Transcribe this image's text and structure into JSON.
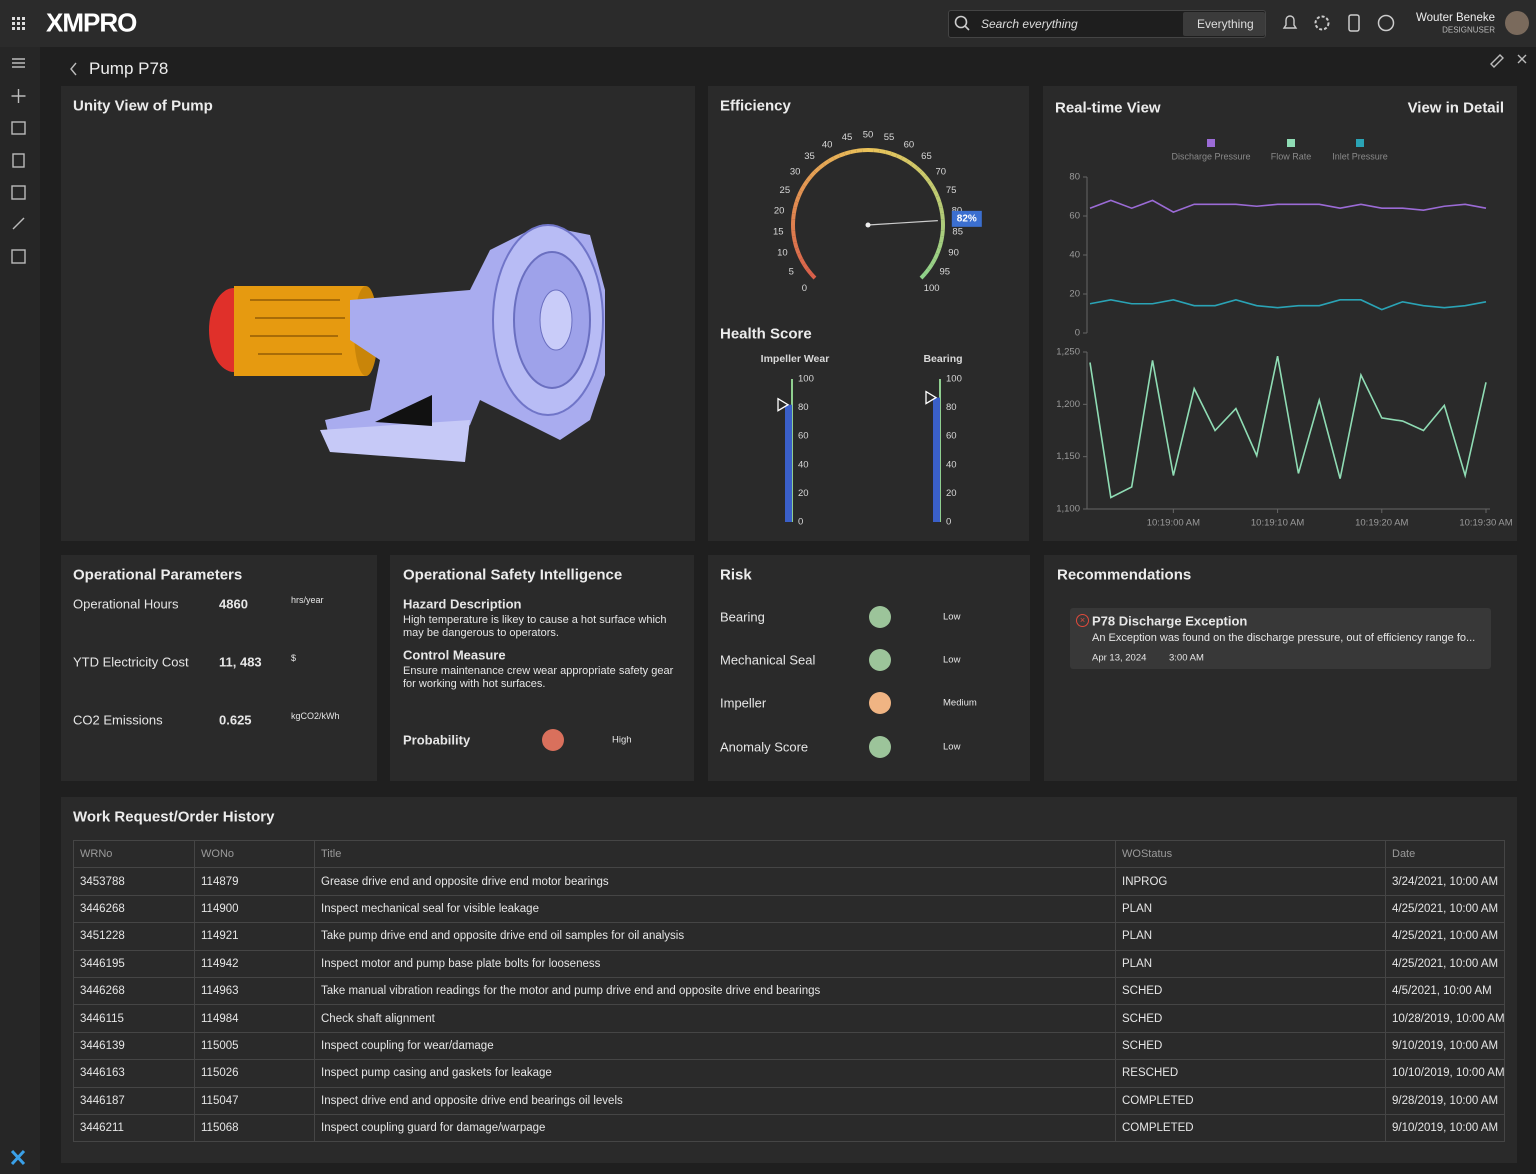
{
  "header": {
    "logo": "XMPRO",
    "search_placeholder": "Search everything",
    "search_scope": "Everything",
    "user_name": "Wouter Beneke",
    "user_role": "DESIGNUSER"
  },
  "page_title": "Pump P78",
  "unity_view": {
    "title": "Unity View of Pump"
  },
  "efficiency": {
    "title": "Efficiency",
    "chart_data": {
      "type": "gauge",
      "value": 82,
      "value_label": "82%",
      "lim": [
        0,
        100
      ],
      "ticks": [
        0,
        5,
        10,
        15,
        20,
        25,
        30,
        35,
        40,
        45,
        50,
        55,
        60,
        65,
        70,
        75,
        80,
        85,
        90,
        95,
        100
      ],
      "color": "#3b6fd0"
    }
  },
  "health_score": {
    "title": "Health Score",
    "chart_data": [
      {
        "type": "bullet",
        "title": "Impeller Wear",
        "value": 82,
        "ylim": [
          0,
          100
        ],
        "yticks": [
          0,
          20,
          40,
          60,
          80,
          100
        ],
        "color": "#3a5fc8"
      },
      {
        "type": "bullet",
        "title": "Bearing",
        "value": 87,
        "ylim": [
          0,
          100
        ],
        "yticks": [
          0,
          20,
          40,
          60,
          80,
          100
        ],
        "color": "#3a5fc8"
      }
    ]
  },
  "realtime_view": {
    "title": "Real-time View",
    "link": "View in Detail",
    "chart_data": [
      {
        "type": "line",
        "x": [
          "10:18:52 AM",
          "10:18:54 AM",
          "10:18:56 AM",
          "10:18:58 AM",
          "10:19:00 AM",
          "10:19:02 AM",
          "10:19:04 AM",
          "10:19:06 AM",
          "10:19:08 AM",
          "10:19:10 AM",
          "10:19:12 AM",
          "10:19:14 AM",
          "10:19:16 AM",
          "10:19:18 AM",
          "10:19:20 AM",
          "10:19:22 AM",
          "10:19:24 AM",
          "10:19:26 AM",
          "10:19:28 AM",
          "10:19:30 AM"
        ],
        "ylim": [
          0,
          80
        ],
        "yticks": [
          0,
          20,
          40,
          60,
          80
        ],
        "series": [
          {
            "name": "Discharge Pressure",
            "color": "#9b6bd6",
            "values": [
              64,
              68,
              64,
              68,
              62,
              66,
              66,
              66,
              65,
              66,
              66,
              66,
              64,
              66,
              64,
              64,
              63,
              65,
              66,
              64
            ]
          },
          {
            "name": "Inlet Pressure",
            "color": "#2aa3b5",
            "values": [
              15,
              17,
              15,
              15,
              17,
              14,
              14,
              17,
              14,
              13,
              14,
              14,
              17,
              17,
              12,
              16,
              14,
              13,
              14,
              16
            ]
          }
        ]
      },
      {
        "type": "line",
        "x": [
          "10:18:52 AM",
          "10:18:54 AM",
          "10:18:56 AM",
          "10:18:58 AM",
          "10:19:00 AM",
          "10:19:02 AM",
          "10:19:04 AM",
          "10:19:06 AM",
          "10:19:08 AM",
          "10:19:10 AM",
          "10:19:12 AM",
          "10:19:14 AM",
          "10:19:16 AM",
          "10:19:18 AM",
          "10:19:20 AM",
          "10:19:22 AM",
          "10:19:24 AM",
          "10:19:26 AM",
          "10:19:28 AM",
          "10:19:30 AM"
        ],
        "xticks": [
          "10:19:00 AM",
          "10:19:10 AM",
          "10:19:20 AM",
          "10:19:30 AM"
        ],
        "ylim": [
          1100,
          1250
        ],
        "yticks": [
          {
            "value": 1100,
            "label": "1,100"
          },
          {
            "value": 1150,
            "label": "1,150"
          },
          {
            "value": 1200,
            "label": "1,200"
          },
          {
            "value": 1250,
            "label": "1,250"
          }
        ],
        "series": [
          {
            "name": "Flow Rate",
            "color": "#8fdcb4",
            "values": [
              1240,
              1111,
              1121,
              1242,
              1132,
              1215,
              1175,
              1196,
              1151,
              1246,
              1134,
              1204,
              1129,
              1228,
              1187,
              1184,
              1175,
              1199,
              1132,
              1221
            ]
          }
        ]
      }
    ]
  },
  "operational_parameters": {
    "title": "Operational Parameters",
    "rows": [
      {
        "label": "Operational Hours",
        "value": 4860,
        "unit": "hrs/year"
      },
      {
        "label": "YTD Electricity Cost",
        "value": "11, 483",
        "unit": "$"
      },
      {
        "label": "CO2 Emissions",
        "value": 0.625,
        "unit": "kgCO2/kWh"
      }
    ]
  },
  "safety": {
    "title": "Operational Safety Intelligence",
    "hazard": {
      "heading": "Hazard Description",
      "text": "High temperature is likey to cause a hot surface which may be dangerous to operators."
    },
    "control": {
      "heading": "Control Measure",
      "text": "Ensure maintenance crew wear appropriate safety gear for working with hot surfaces."
    },
    "probability": {
      "label": "Probability",
      "level": "High",
      "color": "#d9705c"
    }
  },
  "risk": {
    "title": "Risk",
    "rows": [
      {
        "label": "Bearing",
        "level": "Low",
        "color": "#9cc49a"
      },
      {
        "label": "Mechanical Seal",
        "level": "Low",
        "color": "#9cc49a"
      },
      {
        "label": "Impeller",
        "level": "Medium",
        "color": "#f0b483"
      },
      {
        "label": "Anomaly Score",
        "level": "Low",
        "color": "#9cc49a"
      }
    ]
  },
  "recommendations": {
    "title": "Recommendations",
    "items": [
      {
        "title": "P78 Discharge Exception",
        "text": "An Exception was found on the discharge pressure, out of efficiency range fo...",
        "date": "Apr 13, 2024",
        "time": "3:00 AM"
      }
    ]
  },
  "work_history": {
    "title": "Work Request/Order History",
    "table": {
      "columns": [
        "WRNo",
        "WONo",
        "Title",
        "WOStatus",
        "Date"
      ],
      "rows": [
        [
          "3453788",
          "114879",
          "Grease drive end and opposite drive end motor bearings",
          "INPROG",
          "3/24/2021, 10:00 AM"
        ],
        [
          "3446268",
          "114900",
          "Inspect mechanical seal for visible leakage",
          "PLAN",
          "4/25/2021, 10:00 AM"
        ],
        [
          "3451228",
          "114921",
          "Take pump drive end and opposite drive end oil samples for oil analysis",
          "PLAN",
          "4/25/2021, 10:00 AM"
        ],
        [
          "3446195",
          "114942",
          "Inspect motor and pump base plate bolts for looseness",
          "PLAN",
          "4/25/2021, 10:00 AM"
        ],
        [
          "3446268",
          "114963",
          "Take manual vibration readings for the motor and pump drive end and opposite drive end bearings",
          "SCHED",
          "4/5/2021, 10:00 AM"
        ],
        [
          "3446115",
          "114984",
          "Check shaft alignment",
          "SCHED",
          "10/28/2019, 10:00 AM"
        ],
        [
          "3446139",
          "115005",
          "Inspect coupling for wear/damage",
          "SCHED",
          "9/10/2019, 10:00 AM"
        ],
        [
          "3446163",
          "115026",
          "Inspect pump casing and gaskets for leakage",
          "RESCHED",
          "10/10/2019, 10:00 AM"
        ],
        [
          "3446187",
          "115047",
          "Inspect drive end and opposite drive end bearings oil levels",
          "COMPLETED",
          "9/28/2019, 10:00 AM"
        ],
        [
          "3446211",
          "115068",
          "Inspect coupling guard for damage/warpage",
          "COMPLETED",
          "9/10/2019, 10:00 AM"
        ]
      ]
    }
  }
}
